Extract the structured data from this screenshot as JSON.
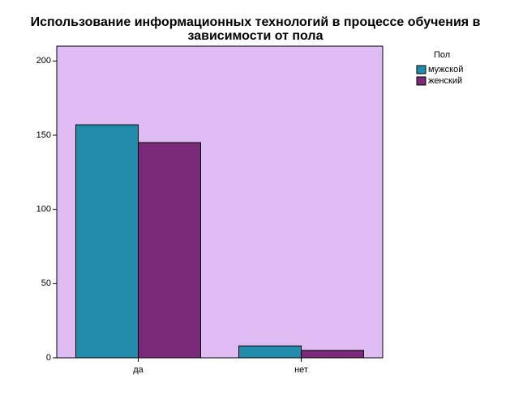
{
  "chart_data": {
    "type": "bar",
    "title": "Использование информационных технологий в процессе обучения в зависимости от пола",
    "categories": [
      "да",
      "нет"
    ],
    "series": [
      {
        "name": "мужской",
        "color": "#238bac",
        "values": [
          157,
          8
        ]
      },
      {
        "name": "женский",
        "color": "#7b2a7a",
        "values": [
          145,
          5
        ]
      }
    ],
    "legend_title": "Пол",
    "legend": "right",
    "plot_background": "#dfbbf3",
    "ylim": [
      0,
      210
    ],
    "yticks": [
      0,
      50,
      100,
      150,
      200
    ]
  }
}
